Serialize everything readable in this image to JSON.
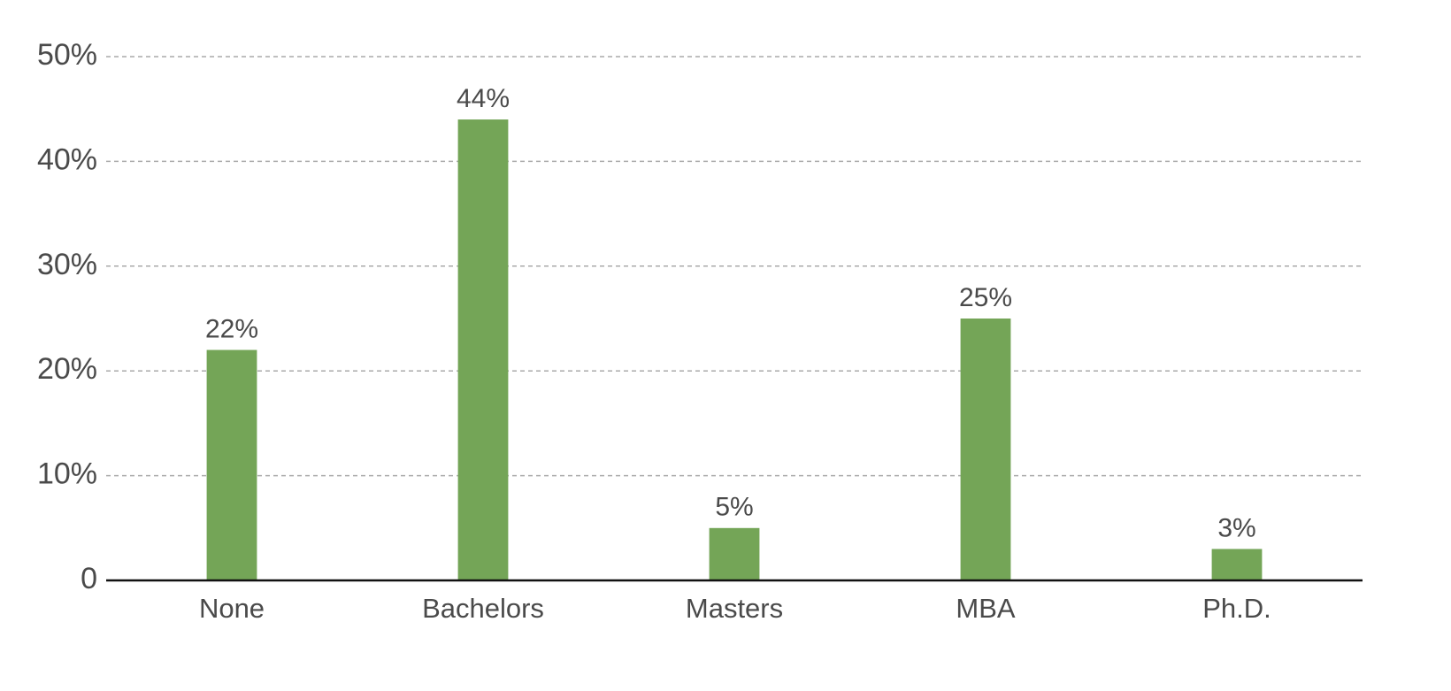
{
  "chart_data": {
    "type": "bar",
    "categories": [
      "None",
      "Bachelors",
      "Masters",
      "MBA",
      "Ph.D."
    ],
    "values": [
      22,
      44,
      5,
      25,
      3
    ],
    "value_labels": [
      "22%",
      "44%",
      "5%",
      "25%",
      "3%"
    ],
    "color": "#74a557",
    "ylim": [
      0,
      50
    ],
    "yticks": [
      0,
      {
        "value": 10,
        "label": "10%"
      },
      {
        "value": 20,
        "label": "20%"
      },
      {
        "value": 30,
        "label": "30%"
      },
      {
        "value": 40,
        "label": "40%"
      },
      {
        "value": 50,
        "label": "50%"
      }
    ],
    "grid": true
  }
}
